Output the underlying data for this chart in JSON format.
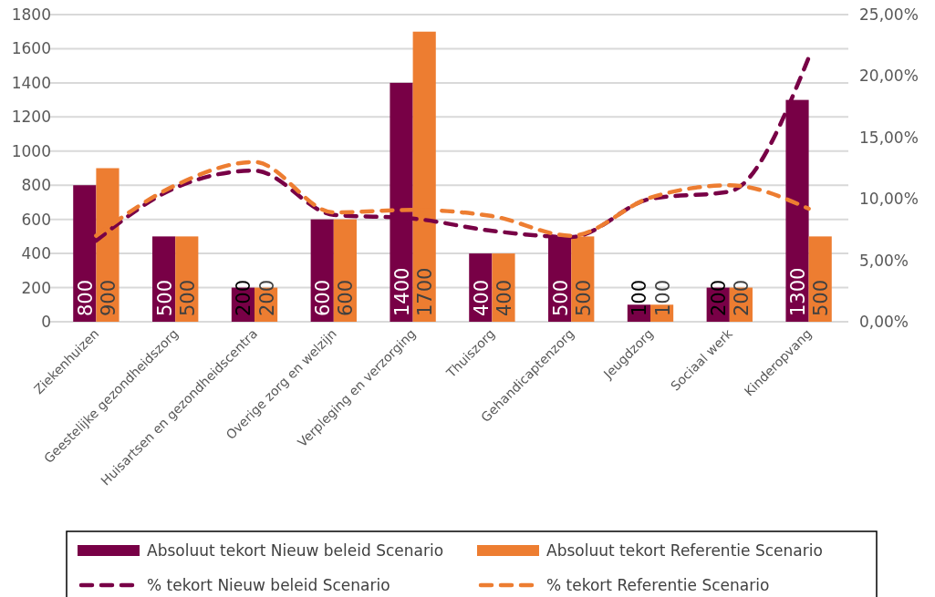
{
  "chart_data": {
    "type": "bar",
    "categories": [
      "Ziekenhuizen",
      "Geestelijke gezondheidszorg",
      "Huisartsen en gezondheidscentra",
      "Overige zorg en welzijn",
      "Verpleging en verzorging",
      "Thuiszorg",
      "Gehandicaptenzorg",
      "Jeugdzorg",
      "Sociaal werk",
      "Kinderopvang"
    ],
    "series": [
      {
        "name": "Absoluut tekort Nieuw beleid Scenario",
        "color": "#780046",
        "values": [
          800,
          500,
          200,
          600,
          1400,
          400,
          500,
          100,
          200,
          1300
        ],
        "value_labels": [
          "800",
          "500",
          "200",
          "600",
          "1400",
          "400",
          "500",
          "100",
          "200",
          "1300"
        ]
      },
      {
        "name": "Absoluut tekort Referentie Scenario",
        "color": "#ed7d31",
        "values": [
          900,
          500,
          200,
          600,
          1700,
          400,
          500,
          100,
          200,
          500
        ],
        "value_labels": [
          "900",
          "500",
          "200",
          "600",
          "1700",
          "400",
          "500",
          "100",
          "200",
          "500"
        ]
      },
      {
        "name": "% tekort Nieuw beleid Scenario",
        "type": "line",
        "axis": "y2",
        "line_style": "dashed",
        "color": "#780046",
        "values": [
          6.6,
          10.9,
          12.3,
          8.7,
          8.4,
          7.4,
          6.9,
          10.0,
          10.6,
          21.5
        ]
      },
      {
        "name": "% tekort Referentie Scenario",
        "type": "line",
        "axis": "y2",
        "line_style": "dashed",
        "color": "#ed7d31",
        "values": [
          7.0,
          11.1,
          13.0,
          8.9,
          9.1,
          8.6,
          7.0,
          10.1,
          11.1,
          9.2
        ]
      }
    ],
    "ylim": [
      0,
      1800
    ],
    "yticks": [
      0,
      200,
      400,
      600,
      800,
      1000,
      1200,
      1400,
      1600,
      1800
    ],
    "y2lim": [
      0,
      25
    ],
    "y2ticks": [
      {
        "value": 0,
        "label": "0,00%"
      },
      {
        "value": 5,
        "label": "5,00%"
      },
      {
        "value": 10,
        "label": "10,00%"
      },
      {
        "value": 15,
        "label": "15,00%"
      },
      {
        "value": 20,
        "label": "20,00%"
      },
      {
        "value": 25,
        "label": "25,00%"
      }
    ],
    "grid": "y",
    "legend": "bottom",
    "marker": "none"
  }
}
